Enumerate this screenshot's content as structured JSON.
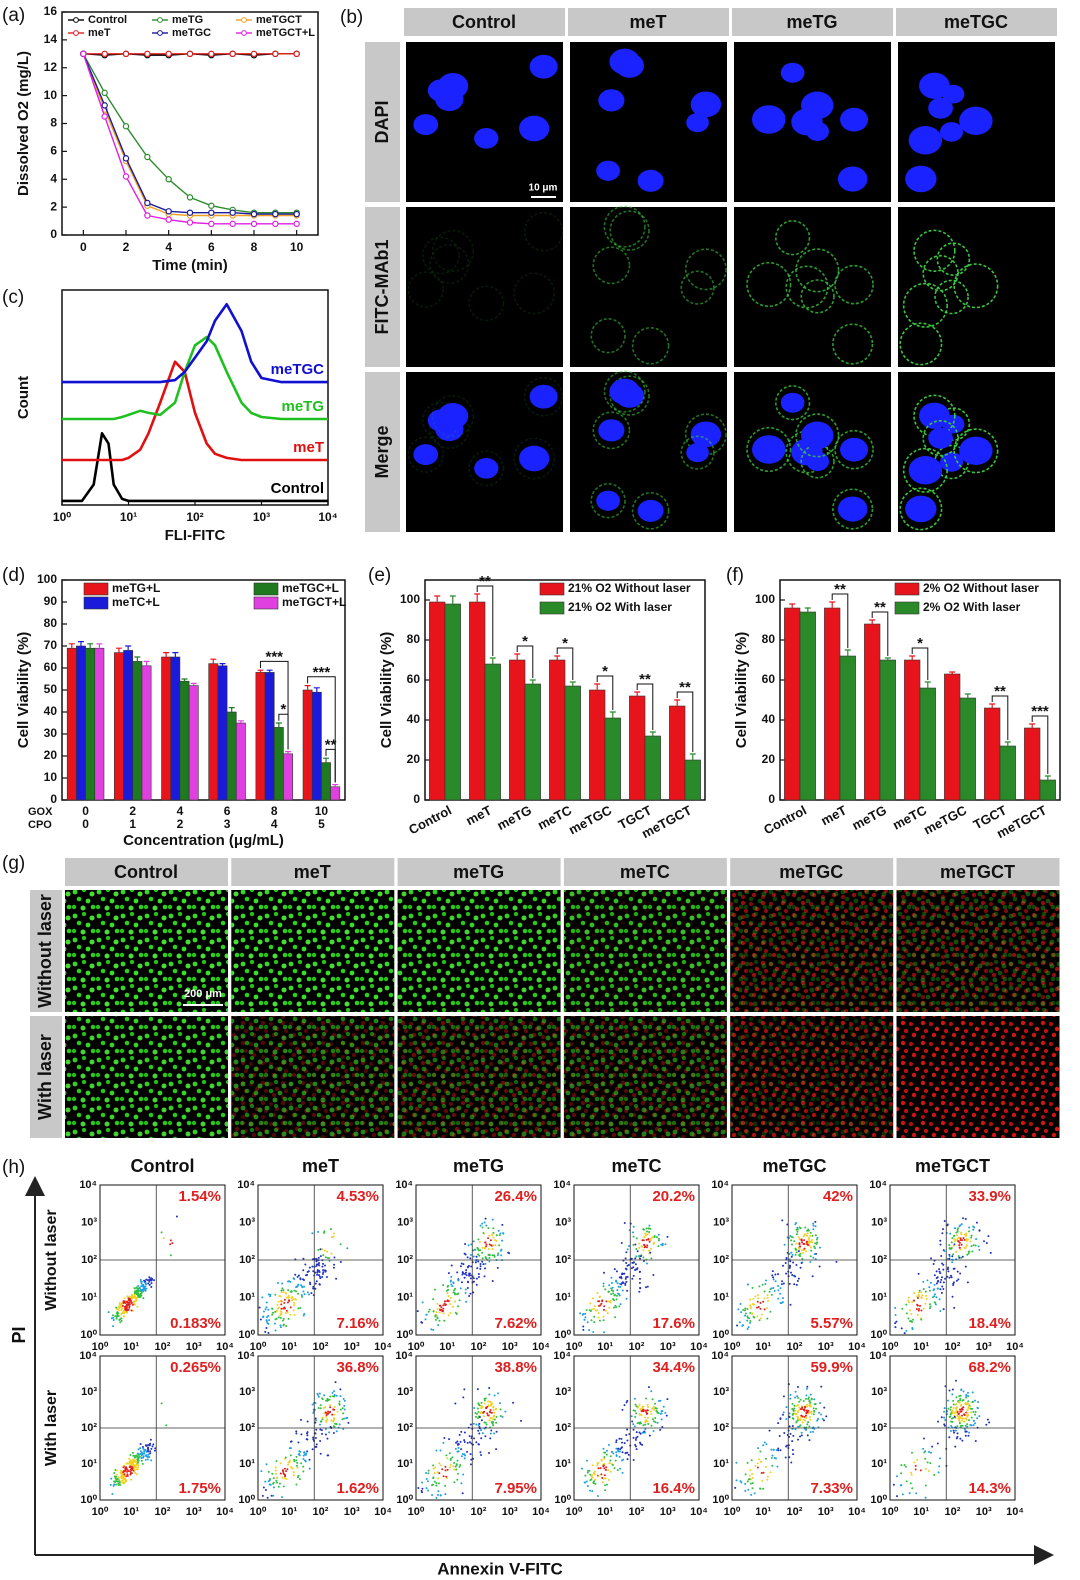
{
  "chart_data": [
    {
      "label": "(a)",
      "type": "line",
      "x_label": "Time (min)",
      "y_label": "Dissolved O2 (mg/L)",
      "x": [
        0,
        1,
        2,
        3,
        4,
        5,
        6,
        7,
        8,
        9,
        10
      ],
      "xlim": [
        -1,
        11
      ],
      "xticks": [
        0,
        2,
        4,
        6,
        8,
        10
      ],
      "ylim": [
        0,
        16
      ],
      "yticks": [
        0,
        2,
        4,
        6,
        8,
        10,
        12,
        14,
        16
      ],
      "markers": true,
      "legend": "top",
      "series": [
        {
          "name": "Control",
          "color": "#000000",
          "values": [
            13,
            12.9,
            13,
            12.9,
            12.9,
            13,
            12.9,
            13,
            12.9,
            13,
            13
          ]
        },
        {
          "name": "meTG",
          "color": "#2e8b2e",
          "values": [
            13,
            10.2,
            7.8,
            5.6,
            4,
            2.7,
            2.1,
            1.8,
            1.6,
            1.6,
            1.6
          ]
        },
        {
          "name": "meTGCT",
          "color": "#f0a020",
          "values": [
            13,
            9,
            5.3,
            2.1,
            1.5,
            1.4,
            1.4,
            1.4,
            1.4,
            1.4,
            1.4
          ]
        },
        {
          "name": "meT",
          "color": "#e02020",
          "values": [
            13,
            13,
            13,
            13,
            13,
            13,
            13,
            13,
            13,
            13,
            13
          ]
        },
        {
          "name": "meTGC",
          "color": "#1a1a9a",
          "values": [
            13,
            9.3,
            5.5,
            2.3,
            1.7,
            1.6,
            1.6,
            1.6,
            1.5,
            1.5,
            1.5
          ]
        },
        {
          "name": "meTGCT+L",
          "color": "#e020e0",
          "values": [
            13,
            8.5,
            4.2,
            1.4,
            1.1,
            0.9,
            0.8,
            0.8,
            0.8,
            0.8,
            0.8
          ]
        }
      ]
    },
    {
      "label": "(c)",
      "type": "line",
      "x_label": "FLI-FITC",
      "y_label": "Count",
      "x": [
        1,
        2,
        3,
        4,
        5,
        6,
        8,
        10,
        15,
        20,
        30,
        50,
        70,
        100,
        150,
        200,
        300,
        500,
        700,
        1000,
        2000,
        10000
      ],
      "xlim": [
        1,
        10000
      ],
      "xlog": true,
      "xticks": [
        {
          "value": 1,
          "label": "10⁰"
        },
        {
          "value": 10,
          "label": "10¹"
        },
        {
          "value": 100,
          "label": "10²"
        },
        {
          "value": 1000,
          "label": "10³"
        },
        {
          "value": 10000,
          "label": "10⁴"
        }
      ],
      "ylim": [
        0,
        105
      ],
      "legend": "inline",
      "series": [
        {
          "name": "Control",
          "color": "#000000",
          "values": [
            2,
            2,
            10,
            35,
            30,
            10,
            3,
            2,
            2,
            2,
            2,
            2,
            2,
            2,
            2,
            2,
            2,
            2,
            2,
            2,
            2,
            2
          ]
        },
        {
          "name": "meT",
          "color": "#e01010",
          "values": [
            22,
            22,
            22,
            22,
            22,
            22,
            22,
            23,
            27,
            35,
            50,
            70,
            65,
            45,
            30,
            25,
            23,
            22,
            22,
            22,
            22,
            22
          ]
        },
        {
          "name": "meTG",
          "color": "#20c020",
          "values": [
            42,
            42,
            42,
            42,
            42,
            42,
            43,
            44,
            46,
            45,
            44,
            50,
            65,
            78,
            82,
            78,
            65,
            50,
            45,
            43,
            42,
            42
          ]
        },
        {
          "name": "meTGC",
          "color": "#1010d0",
          "values": [
            60,
            60,
            60,
            60,
            60,
            60,
            60,
            60,
            60,
            60,
            60,
            61,
            65,
            72,
            80,
            90,
            98,
            85,
            70,
            62,
            60,
            60
          ]
        }
      ]
    },
    {
      "label": "(d)",
      "type": "bar",
      "x_label": "Concentration (μg/mL)",
      "y_label": "Cell Viability (%)",
      "x_rows": [
        "GOX",
        "CPO"
      ],
      "categories": [
        "0",
        "2",
        "4",
        "6",
        "8",
        "10"
      ],
      "categories2": [
        "0",
        "1",
        "2",
        "3",
        "4",
        "5"
      ],
      "ylim": [
        0,
        100
      ],
      "yticks": [
        0,
        10,
        20,
        30,
        40,
        50,
        60,
        70,
        80,
        90,
        100
      ],
      "legend": "top",
      "series": [
        {
          "name": "meTG+L",
          "color": "#e8141b",
          "values": [
            69,
            67,
            65,
            62,
            58,
            50
          ],
          "errors": [
            2,
            2,
            2,
            2,
            1,
            2
          ]
        },
        {
          "name": "meTC+L",
          "color": "#1a1adb",
          "values": [
            70,
            68,
            65,
            61,
            58,
            49
          ],
          "errors": [
            2,
            2,
            2,
            1,
            1,
            2
          ]
        },
        {
          "name": "meTGC+L",
          "color": "#1f7a1f",
          "values": [
            69,
            63,
            54,
            40,
            33,
            17
          ],
          "errors": [
            2,
            2,
            1,
            2,
            2,
            2
          ]
        },
        {
          "name": "meTGCT+L",
          "color": "#e040e0",
          "values": [
            69,
            61,
            52,
            35,
            21,
            6
          ],
          "errors": [
            2,
            2,
            1,
            1,
            1,
            1
          ]
        }
      ],
      "annotations": [
        {
          "category": "8",
          "text": "***"
        },
        {
          "category": "8",
          "text": "*"
        },
        {
          "category": "10",
          "text": "***"
        },
        {
          "category": "10",
          "text": "**"
        }
      ]
    },
    {
      "label": "(e)",
      "type": "bar",
      "y_label": "Cell Viability (%)",
      "x_label_rotation": -28,
      "categories": [
        "Control",
        "meT",
        "meTG",
        "meTC",
        "meTGC",
        "TGCT",
        "meTGCT"
      ],
      "ylim": [
        0,
        110
      ],
      "yticks": [
        0,
        20,
        40,
        60,
        80,
        100
      ],
      "legend": "upper-right",
      "series": [
        {
          "name": "21% O2 Without laser",
          "color": "#e8141b",
          "values": [
            99,
            99,
            70,
            70,
            55,
            52,
            47
          ],
          "errors": [
            3,
            4,
            3,
            2,
            3,
            2,
            3
          ]
        },
        {
          "name": "21% O2 With laser",
          "color": "#2a8a2a",
          "values": [
            98,
            68,
            58,
            57,
            41,
            32,
            20
          ],
          "errors": [
            4,
            3,
            2,
            2,
            3,
            2,
            3
          ]
        }
      ],
      "annotations": [
        {
          "category": "meT",
          "text": "**"
        },
        {
          "category": "meTG",
          "text": "*"
        },
        {
          "category": "meTC",
          "text": "*"
        },
        {
          "category": "meTGC",
          "text": "*"
        },
        {
          "category": "TGCT",
          "text": "**"
        },
        {
          "category": "meTGCT",
          "text": "**"
        }
      ]
    },
    {
      "label": "(f)",
      "type": "bar",
      "y_label": "Cell Viability (%)",
      "x_label_rotation": -28,
      "categories": [
        "Control",
        "meT",
        "meTG",
        "meTC",
        "meTGC",
        "TGCT",
        "meTGCT"
      ],
      "ylim": [
        0,
        110
      ],
      "yticks": [
        0,
        20,
        40,
        60,
        80,
        100
      ],
      "legend": "upper-right",
      "series": [
        {
          "name": "2% O2 Without laser",
          "color": "#e8141b",
          "values": [
            96,
            96,
            88,
            70,
            63,
            46,
            36
          ],
          "errors": [
            2,
            3,
            2,
            2,
            1,
            2,
            2
          ]
        },
        {
          "name": "2% O2 With laser",
          "color": "#2a8a2a",
          "values": [
            94,
            72,
            70,
            56,
            51,
            27,
            10
          ],
          "errors": [
            2,
            3,
            1,
            3,
            2,
            2,
            2
          ]
        }
      ],
      "annotations": [
        {
          "category": "meT",
          "text": "**"
        },
        {
          "category": "meTG",
          "text": "**"
        },
        {
          "category": "meTC",
          "text": "*"
        },
        {
          "category": "TGCT",
          "text": "**"
        },
        {
          "category": "meTGCT",
          "text": "***"
        }
      ]
    }
  ],
  "panel_b": {
    "label": "(b)",
    "columns": [
      "Control",
      "meT",
      "meTG",
      "meTGC"
    ],
    "rows": [
      "DAPI",
      "FITC-MAb1",
      "Merge"
    ],
    "scale_bar": "10 μm"
  },
  "panel_g": {
    "label": "(g)",
    "columns": [
      "Control",
      "meT",
      "meTG",
      "meTC",
      "meTGC",
      "meTGCT"
    ],
    "rows": [
      "Without laser",
      "With laser"
    ],
    "scale_bar": "200 μm"
  },
  "panel_h": {
    "label": "(h)",
    "columns": [
      "Control",
      "meT",
      "meTG",
      "meTC",
      "meTGC",
      "meTGCT"
    ],
    "rows": [
      "Without laser",
      "With laser"
    ],
    "y_label": "PI",
    "x_label": "Annexin V-FITC",
    "ticks": [
      "10⁰",
      "10¹",
      "10²",
      "10³",
      "10⁴"
    ],
    "values": [
      [
        [
          "1.54%",
          "0.183%"
        ],
        [
          "4.53%",
          "7.16%"
        ],
        [
          "26.4%",
          "7.62%"
        ],
        [
          "20.2%",
          "17.6%"
        ],
        [
          "42%",
          "5.57%"
        ],
        [
          "33.9%",
          "18.4%"
        ]
      ],
      [
        [
          "0.265%",
          "1.75%"
        ],
        [
          "36.8%",
          "1.62%"
        ],
        [
          "38.8%",
          "7.95%"
        ],
        [
          "34.4%",
          "16.4%"
        ],
        [
          "59.9%",
          "7.33%"
        ],
        [
          "68.2%",
          "14.3%"
        ]
      ]
    ]
  }
}
